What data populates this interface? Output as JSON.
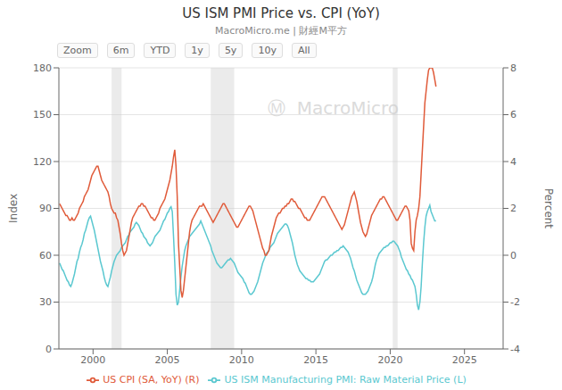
{
  "chart_data": {
    "type": "line",
    "title": "US ISM PMI Price vs. CPI (YoY)",
    "subtitle": "MacroMicro.me | 財經M平方",
    "zoom_labels": [
      "Zoom",
      "6m",
      "YTD",
      "1y",
      "5y",
      "10y",
      "All"
    ],
    "watermark": "Ⓜ  MacroMicro",
    "ylabel": "Index",
    "y2label": "Percent",
    "xlim": [
      1997.7,
      2027.6
    ],
    "xticks": [
      2000,
      2005,
      2010,
      2015,
      2020,
      2025
    ],
    "ylim": [
      0,
      180
    ],
    "yticks": [
      0,
      30,
      60,
      90,
      120,
      150,
      180
    ],
    "y2lim": [
      -4,
      8
    ],
    "y2ticks": [
      -4,
      -2,
      0,
      2,
      4,
      6,
      8
    ],
    "grid": true,
    "legend": "bottom",
    "bands": [
      [
        2001.25,
        2001.92
      ],
      [
        2007.92,
        2009.5
      ],
      [
        2020.17,
        2020.5
      ]
    ],
    "x": [
      1997.75,
      1997.83333,
      1997.91666,
      1997.99999,
      1998.08332,
      1998.16665,
      1998.24998,
      1998.33331,
      1998.41664,
      1998.49997,
      1998.5833,
      1998.66663,
      1998.74996,
      1998.83329,
      1998.91662,
      1998.99995,
      1999.08328,
      1999.16661,
      1999.24994,
      1999.33327,
      1999.4166,
      1999.49993,
      1999.58326,
      1999.66659,
      1999.74992,
      1999.83325,
      1999.91658,
      1999.99991,
      2000.08324,
      2000.16657,
      2000.2499,
      2000.33323,
      2000.41656,
      2000.49989,
      2000.58322,
      2000.66655,
      2000.74988,
      2000.83321,
      2000.91654,
      2000.99987,
      2001.0832,
      2001.16653,
      2001.24986,
      2001.33319,
      2001.41652,
      2001.49985,
      2001.58318,
      2001.66651,
      2001.74984,
      2001.83317,
      2001.9165,
      2001.99983,
      2002.08316,
      2002.16649,
      2002.24982,
      2002.33315,
      2002.41648,
      2002.49981,
      2002.58314,
      2002.66647,
      2002.7498,
      2002.83313,
      2002.91646,
      2002.99979,
      2003.08312,
      2003.16645,
      2003.24978,
      2003.33311,
      2003.41644,
      2003.49977,
      2003.5831,
      2003.66643,
      2003.74976,
      2003.83309,
      2003.91642,
      2003.99975,
      2004.08308,
      2004.16641,
      2004.24974,
      2004.33307,
      2004.4164,
      2004.49973,
      2004.58306,
      2004.66639,
      2004.74972,
      2004.83305,
      2004.91638,
      2004.99971,
      2005.08304,
      2005.16637,
      2005.2497,
      2005.33303,
      2005.41636,
      2005.49969,
      2005.58302,
      2005.66635,
      2005.74968,
      2005.83301,
      2005.91634,
      2005.99967,
      2006.083,
      2006.16633,
      2006.24966,
      2006.33299,
      2006.41632,
      2006.49965,
      2006.58298,
      2006.66631,
      2006.74964,
      2006.83297,
      2006.9163,
      2006.99963,
      2007.08296,
      2007.16629,
      2007.24962,
      2007.33295,
      2007.41628,
      2007.49961,
      2007.58294,
      2007.66627,
      2007.7496,
      2007.83293,
      2007.91626,
      2007.99959,
      2008.08292,
      2008.16625,
      2008.24958,
      2008.33291,
      2008.41624,
      2008.49957,
      2008.5829,
      2008.66623,
      2008.74956,
      2008.83289,
      2008.91622,
      2008.99955,
      2009.08288,
      2009.16621,
      2009.24954,
      2009.33287,
      2009.4162,
      2009.49953,
      2009.58286,
      2009.66619,
      2009.74952,
      2009.83285,
      2009.91618,
      2009.99951,
      2010.08284,
      2010.16617,
      2010.2495,
      2010.33283,
      2010.41616,
      2010.49949,
      2010.58282,
      2010.66615,
      2010.74948,
      2010.83281,
      2010.91614,
      2010.99947,
      2011.0828,
      2011.16613,
      2011.24946,
      2011.33279,
      2011.41612,
      2011.49945,
      2011.58278,
      2011.66611,
      2011.74944,
      2011.83277,
      2011.9161,
      2011.99943,
      2012.08276,
      2012.16609,
      2012.24942,
      2012.33275,
      2012.41608,
      2012.49941,
      2012.58274,
      2012.66607,
      2012.7494,
      2012.83273,
      2012.91606,
      2012.99939,
      2013.08272,
      2013.16605,
      2013.24938,
      2013.33271,
      2013.41604,
      2013.49937,
      2013.5827,
      2013.66603,
      2013.74936,
      2013.83269,
      2013.91602,
      2013.99935,
      2014.08268,
      2014.16601,
      2014.24934,
      2014.33267,
      2014.416,
      2014.49933,
      2014.58266,
      2014.66599,
      2014.74932,
      2014.83265,
      2014.91598,
      2014.99931,
      2015.08264,
      2015.16597,
      2015.2493,
      2015.33263,
      2015.41596,
      2015.49929,
      2015.58262,
      2015.66595,
      2015.74928,
      2015.83261,
      2015.91594,
      2015.99927,
      2016.0826,
      2016.16593,
      2016.24926,
      2016.33259,
      2016.41592,
      2016.49925,
      2016.58258,
      2016.66591,
      2016.74924,
      2016.83257,
      2016.9159,
      2016.99923,
      2017.08256,
      2017.16589,
      2017.24922,
      2017.33255,
      2017.41588,
      2017.49921,
      2017.58254,
      2017.66587,
      2017.7492,
      2017.83253,
      2017.91586,
      2017.99919,
      2018.08252,
      2018.16585,
      2018.24918,
      2018.33251,
      2018.41584,
      2018.49917,
      2018.5825,
      2018.66583,
      2018.74916,
      2018.83249,
      2018.91582,
      2018.99915,
      2019.08248,
      2019.16581,
      2019.24914,
      2019.33247,
      2019.4158,
      2019.49913,
      2019.58246,
      2019.66579,
      2019.74912,
      2019.83245,
      2019.91578,
      2019.99911,
      2020.08244,
      2020.16577,
      2020.2491,
      2020.33243,
      2020.41576,
      2020.49909,
      2020.58242,
      2020.66575,
      2020.74908,
      2020.83241,
      2020.91574,
      2020.99907,
      2021.0824,
      2021.16573,
      2021.24906,
      2021.33239,
      2021.41572,
      2021.49905,
      2021.58238,
      2021.66571,
      2021.74904,
      2021.83237,
      2021.9157,
      2021.99903,
      2022.08236,
      2022.16569,
      2022.24902,
      2022.33235,
      2022.41568,
      2022.49901,
      2022.58234,
      2022.66567,
      2022.749,
      2022.83233,
      2022.91566,
      2022.99899,
      2023.08232
    ],
    "series": [
      {
        "name": "US ISM Manufacturing PMI: Raw Material Price (L)",
        "color": "#5bc8d0",
        "values": [
          55.0,
          53.0,
          51.0,
          50.0,
          48.0,
          46.0,
          44.0,
          43.0,
          41.0,
          40.0,
          42.0,
          45.0,
          48.0,
          52.0,
          56.0,
          58.0,
          62.0,
          65.0,
          67.0,
          70.0,
          74.0,
          76.0,
          79.0,
          82.0,
          84.0,
          85.0,
          82.0,
          79.0,
          76.0,
          72.0,
          68.0,
          64.0,
          60.0,
          56.0,
          53.0,
          50.0,
          46.0,
          43.0,
          41.0,
          40.0,
          43.0,
          46.0,
          50.0,
          53.0,
          56.0,
          58.0,
          60.0,
          61.0,
          62.0,
          63.0,
          65.0,
          66.0,
          67.0,
          68.0,
          70.0,
          72.0,
          73.0,
          75.0,
          76.0,
          77.0,
          78.0,
          80.0,
          81.0,
          80.0,
          79.0,
          77.0,
          75.0,
          74.0,
          72.0,
          71.0,
          70.0,
          68.0,
          67.0,
          66.0,
          67.0,
          68.0,
          70.0,
          72.0,
          73.0,
          74.0,
          75.0,
          76.0,
          78.0,
          80.0,
          82.0,
          83.0,
          85.0,
          87.0,
          88.0,
          90.0,
          91.0,
          88.0,
          72.0,
          55.0,
          35.0,
          28.0,
          30.0,
          38.0,
          46.0,
          53.0,
          58.0,
          63.0,
          66.0,
          68.0,
          70.0,
          72.0,
          73.0,
          74.0,
          75.0,
          76.0,
          77.0,
          78.0,
          79.0,
          80.0,
          82.0,
          80.0,
          78.0,
          76.0,
          74.0,
          72.0,
          70.0,
          68.0,
          66.0,
          63.0,
          61.0,
          59.0,
          57.0,
          55.0,
          54.0,
          53.0,
          52.0,
          52.0,
          53.0,
          54.0,
          55.0,
          56.0,
          57.0,
          57.0,
          58.0,
          57.0,
          56.0,
          55.0,
          53.0,
          51.0,
          49.0,
          48.0,
          47.0,
          46.0,
          45.0,
          43.0,
          42.0,
          40.0,
          38.0,
          36.0,
          35.0,
          35.0,
          36.0,
          37.0,
          39.0,
          41.0,
          43.0,
          46.0,
          49.0,
          52.0,
          55.0,
          57.0,
          59.0,
          61.0,
          62.0,
          63.0,
          65.0,
          66.0,
          67.0,
          68.0,
          70.0,
          72.0,
          74.0,
          75.0,
          76.0,
          77.0,
          78.0,
          79.0,
          80.0,
          80.0,
          79.0,
          77.0,
          74.0,
          71.0,
          68.0,
          64.0,
          60.0,
          57.0,
          54.0,
          52.0,
          50.0,
          49.0,
          48.0,
          47.0,
          46.0,
          45.0,
          45.0,
          44.0,
          44.0,
          43.0,
          43.0,
          43.0,
          44.0,
          45.0,
          46.0,
          47.0,
          48.0,
          50.0,
          52.0,
          54.0,
          56.0,
          57.0,
          57.0,
          58.0,
          59.0,
          60.0,
          60.0,
          61.0,
          62.0,
          62.0,
          63.0,
          63.0,
          64.0,
          65.0,
          65.0,
          66.0,
          65.0,
          64.0,
          63.0,
          62.0,
          60.0,
          58.0,
          55.0,
          52.0,
          50.0,
          47.0,
          44.0,
          42.0,
          40.0,
          38.0,
          36.0,
          35.0,
          35.0,
          35.0,
          36.0,
          37.0,
          39.0,
          41.0,
          43.0,
          46.0,
          50.0,
          54.0,
          57.0,
          59.0,
          61.0,
          62.0,
          63.0,
          64.0,
          65.0,
          65.0,
          66.0,
          66.0,
          67.0,
          68.0,
          68.0,
          69.0,
          69.0,
          68.0,
          67.0,
          66.0,
          64.0,
          62.0,
          59.0,
          57.0,
          55.0,
          53.0,
          51.0,
          50.0,
          48.0,
          47.0,
          45.0,
          44.0,
          42.0,
          40.0,
          35.0,
          28.0,
          25.0,
          30.0,
          40.0,
          55.0,
          68.0,
          78.0,
          85.0,
          88.0,
          90.0,
          92.0,
          88.0,
          86.0,
          84.0,
          82.0,
          82.0
        ]
      },
      {
        "name": "US CPI (SA, YoY) (R)",
        "color": "#e05b3a",
        "axis": "y2",
        "values": [
          2.2,
          2.1,
          2.0,
          1.9,
          1.8,
          1.7,
          1.7,
          1.6,
          1.5,
          1.5,
          1.6,
          1.5,
          1.5,
          1.6,
          1.7,
          1.8,
          2.0,
          2.1,
          2.2,
          2.3,
          2.5,
          2.6,
          2.7,
          2.8,
          3.0,
          3.2,
          3.4,
          3.5,
          3.6,
          3.7,
          3.8,
          3.8,
          3.6,
          3.4,
          3.2,
          3.1,
          3.0,
          2.9,
          2.8,
          2.7,
          2.5,
          2.2,
          2.0,
          1.9,
          1.8,
          1.8,
          1.6,
          1.5,
          1.2,
          0.9,
          0.5,
          0.2,
          0.0,
          0.1,
          0.2,
          0.5,
          0.8,
          1.1,
          1.4,
          1.6,
          1.7,
          1.8,
          1.9,
          2.0,
          2.1,
          2.1,
          2.2,
          2.2,
          2.1,
          2.1,
          2.0,
          1.9,
          1.8,
          1.7,
          1.6,
          1.6,
          1.5,
          1.5,
          1.6,
          1.7,
          1.8,
          2.0,
          2.1,
          2.2,
          2.3,
          2.4,
          2.6,
          2.8,
          3.0,
          3.2,
          3.5,
          3.8,
          4.2,
          4.5,
          3.8,
          2.5,
          0.5,
          -0.5,
          -1.5,
          -1.8,
          -1.5,
          -1.0,
          -0.5,
          0.0,
          0.5,
          1.0,
          1.3,
          1.5,
          1.6,
          1.7,
          1.8,
          1.9,
          2.0,
          2.1,
          2.1,
          2.1,
          2.2,
          2.1,
          2.0,
          1.9,
          1.8,
          1.7,
          1.6,
          1.5,
          1.4,
          1.5,
          1.6,
          1.7,
          1.8,
          1.9,
          2.0,
          2.1,
          2.2,
          2.2,
          2.1,
          2.0,
          1.9,
          1.8,
          1.7,
          1.6,
          1.5,
          1.4,
          1.3,
          1.2,
          1.2,
          1.3,
          1.4,
          1.5,
          1.6,
          1.7,
          1.8,
          1.9,
          2.0,
          2.1,
          2.1,
          2.0,
          1.9,
          1.7,
          1.5,
          1.3,
          1.1,
          0.9,
          0.7,
          0.5,
          0.3,
          0.2,
          0.0,
          0.0,
          0.1,
          0.2,
          0.5,
          0.8,
          1.0,
          1.2,
          1.4,
          1.6,
          1.7,
          1.8,
          1.8,
          1.9,
          2.0,
          2.0,
          2.1,
          2.1,
          2.2,
          2.2,
          2.3,
          2.4,
          2.4,
          2.3,
          2.3,
          2.2,
          2.1,
          2.0,
          2.0,
          1.9,
          1.8,
          1.7,
          1.6,
          1.6,
          1.5,
          1.5,
          1.5,
          1.6,
          1.7,
          1.8,
          1.9,
          2.0,
          2.1,
          2.2,
          2.3,
          2.4,
          2.5,
          2.5,
          2.5,
          2.4,
          2.3,
          2.2,
          2.1,
          2.0,
          1.9,
          1.8,
          1.7,
          1.6,
          1.5,
          1.4,
          1.3,
          1.2,
          1.1,
          1.2,
          1.3,
          1.5,
          1.7,
          1.9,
          2.1,
          2.3,
          2.5,
          2.6,
          2.7,
          2.5,
          2.3,
          2.0,
          1.7,
          1.4,
          1.2,
          1.0,
          0.9,
          0.8,
          0.9,
          1.1,
          1.3,
          1.5,
          1.7,
          1.8,
          1.9,
          2.0,
          2.1,
          2.2,
          2.3,
          2.4,
          2.4,
          2.5,
          2.5,
          2.4,
          2.3,
          2.2,
          2.1,
          2.0,
          1.9,
          1.8,
          1.7,
          1.6,
          1.5,
          1.5,
          1.6,
          1.7,
          1.8,
          1.9,
          2.0,
          2.1,
          2.1,
          2.0,
          1.9,
          1.5,
          0.5,
          0.3,
          0.2,
          1.0,
          1.5,
          1.7,
          2.0,
          2.5,
          3.5,
          4.5,
          5.5,
          6.5,
          7.0,
          7.5,
          7.9,
          8.0,
          8.0,
          8.0,
          7.8,
          7.5,
          7.2
        ]
      }
    ]
  }
}
